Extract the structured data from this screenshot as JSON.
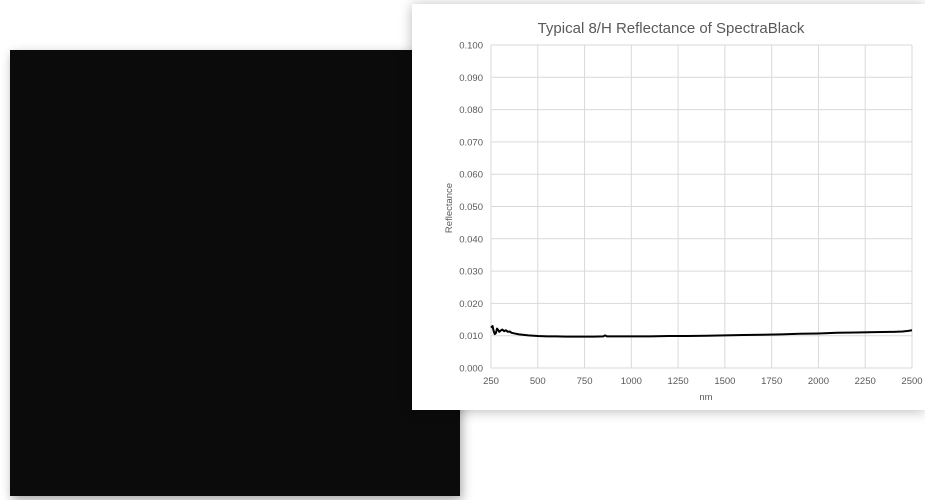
{
  "colors": {
    "sample_black": "#0b0b0b",
    "grid": "#d9d9d9",
    "line": "#000000",
    "text": "#595959"
  },
  "chart_data": {
    "type": "line",
    "title": "Typical 8/H Reflectance of SpectraBlack",
    "xlabel": "nm",
    "ylabel": "Reflectance",
    "xlim": [
      250,
      2500
    ],
    "ylim": [
      0.0,
      0.1
    ],
    "xticks": [
      "250",
      "500",
      "750",
      "1000",
      "1250",
      "1500",
      "1750",
      "2000",
      "2250",
      "2500"
    ],
    "yticks": [
      "0.000",
      "0.010",
      "0.020",
      "0.030",
      "0.040",
      "0.050",
      "0.060",
      "0.070",
      "0.080",
      "0.090",
      "0.100"
    ],
    "grid": true,
    "legend": "none",
    "series": [
      {
        "x": [
          250,
          258,
          264,
          270,
          276,
          282,
          288,
          294,
          300,
          310,
          320,
          330,
          340,
          350,
          360,
          375,
          400,
          450,
          500,
          550,
          600,
          650,
          700,
          750,
          800,
          850,
          860,
          870,
          900,
          1000,
          1100,
          1200,
          1300,
          1400,
          1500,
          1600,
          1700,
          1800,
          1900,
          2000,
          2100,
          2200,
          2300,
          2400,
          2450,
          2480,
          2500
        ],
        "y": [
          0.0125,
          0.013,
          0.0115,
          0.0105,
          0.0108,
          0.0122,
          0.0118,
          0.0112,
          0.0115,
          0.0119,
          0.0114,
          0.0117,
          0.0112,
          0.0113,
          0.0109,
          0.0107,
          0.0104,
          0.0101,
          0.0099,
          0.0098,
          0.0098,
          0.0097,
          0.0097,
          0.0097,
          0.0097,
          0.0098,
          0.0101,
          0.0098,
          0.0098,
          0.0098,
          0.0098,
          0.0099,
          0.0099,
          0.01,
          0.0101,
          0.0102,
          0.0103,
          0.0104,
          0.0106,
          0.0107,
          0.0109,
          0.011,
          0.0111,
          0.0112,
          0.0113,
          0.0115,
          0.0117
        ]
      }
    ]
  }
}
